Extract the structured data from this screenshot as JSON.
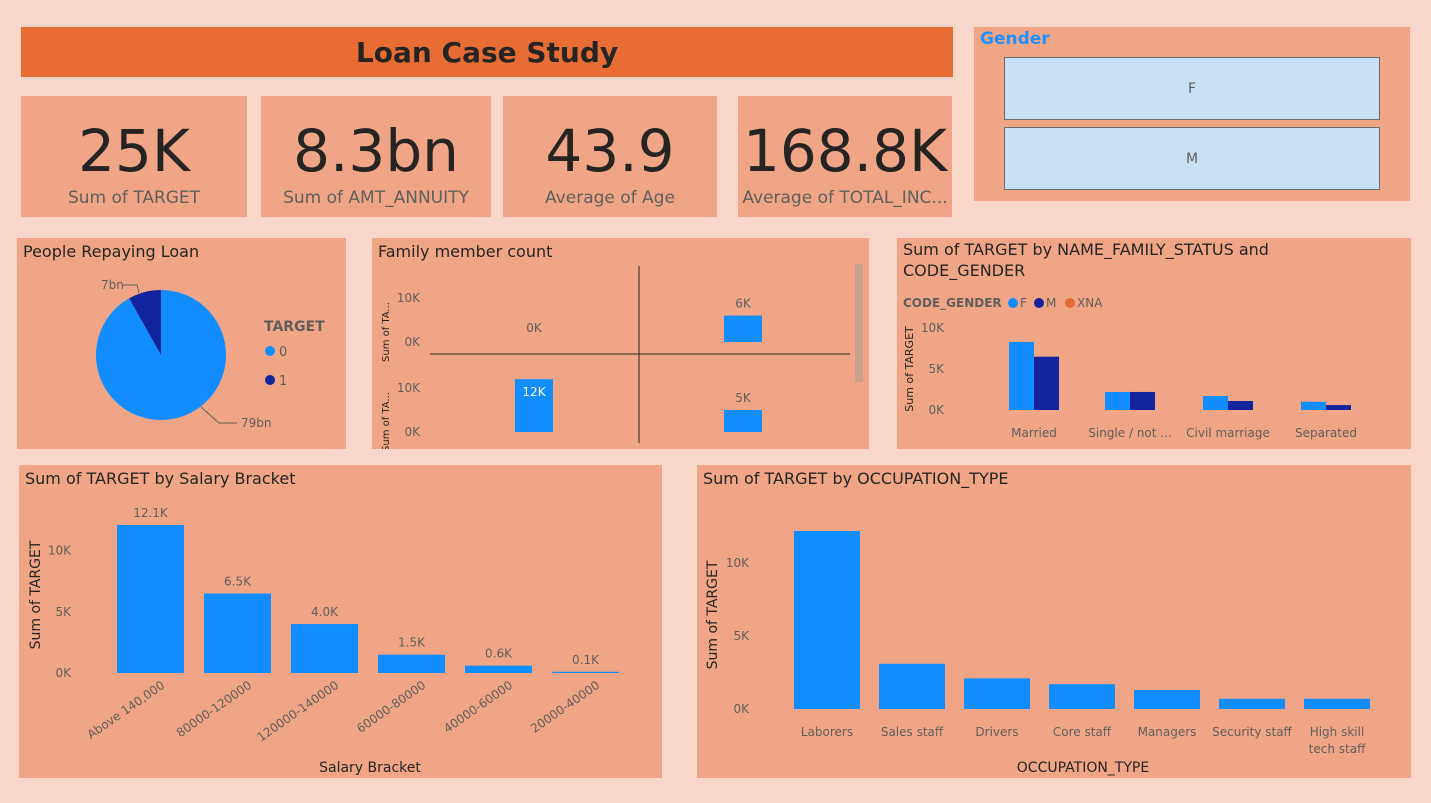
{
  "header": {
    "title": "Loan Case Study"
  },
  "kpis": [
    {
      "value": "25K",
      "label": "Sum of TARGET"
    },
    {
      "value": "8.3bn",
      "label": "Sum of AMT_ANNUITY"
    },
    {
      "value": "43.9",
      "label": "Average of Age"
    },
    {
      "value": "168.8K",
      "label": "Average of TOTAL_INC..."
    }
  ],
  "gender_slicer": {
    "title": "Gender",
    "options": [
      "F",
      "M"
    ]
  },
  "colors": {
    "series_f": "#118dff",
    "series_m": "#12239e",
    "series_xna": "#e66c37",
    "panel": "#f0a686",
    "background": "#f8d7ca",
    "header": "#e86d35"
  },
  "chart_data": [
    {
      "id": "repaying",
      "type": "pie",
      "title": "People Repaying Loan",
      "legend_title": "TARGET",
      "legend_position": "right",
      "categories": [
        "0",
        "1"
      ],
      "values": [
        79,
        7
      ],
      "data_labels": [
        "79bn",
        "7bn"
      ]
    },
    {
      "id": "family",
      "type": "bar",
      "title": "Family member count",
      "ylabel": "Sum of TA...",
      "panels": [
        {
          "value": 0,
          "label": "0K"
        },
        {
          "value": 6,
          "label": "6K"
        },
        {
          "value": 12,
          "label": "12K"
        },
        {
          "value": 5,
          "label": "5K"
        }
      ],
      "ticks": [
        "10K",
        "0K"
      ],
      "ylim": [
        0,
        15
      ]
    },
    {
      "id": "family_status",
      "type": "bar",
      "title": "Sum of TARGET by NAME_FAMILY_STATUS and CODE_GENDER",
      "title_lines": [
        "Sum of TARGET by NAME_FAMILY_STATUS and",
        "CODE_GENDER"
      ],
      "legend_title": "CODE_GENDER",
      "legend_position": "top-left",
      "ylabel": "Sum of TARGET",
      "categories": [
        "Married",
        "Single / not ...",
        "Civil marriage",
        "Separated"
      ],
      "series": [
        {
          "name": "F",
          "values": [
            8.3,
            2.2,
            1.7,
            1.0
          ]
        },
        {
          "name": "M",
          "values": [
            6.5,
            2.2,
            1.1,
            0.6
          ]
        },
        {
          "name": "XNA",
          "values": [
            0,
            0,
            0,
            0
          ]
        }
      ],
      "ticks": [
        "10K",
        "5K",
        "0K"
      ],
      "ylim": [
        0,
        10
      ]
    },
    {
      "id": "salary",
      "type": "bar",
      "title": "Sum of TARGET by Salary Bracket",
      "xlabel": "Salary Bracket",
      "ylabel": "Sum of TARGET",
      "categories": [
        "Above 140,000",
        "80000-120000",
        "120000-140000",
        "60000-80000",
        "40000-60000",
        "20000-40000"
      ],
      "values": [
        12.1,
        6.5,
        4.0,
        1.5,
        0.6,
        0.1
      ],
      "data_labels": [
        "12.1K",
        "6.5K",
        "4.0K",
        "1.5K",
        "0.6K",
        "0.1K"
      ],
      "ticks": [
        "10K",
        "5K",
        "0K"
      ],
      "ylim": [
        0,
        12.1
      ]
    },
    {
      "id": "occupation",
      "type": "bar",
      "title": "Sum of TARGET by OCCUPATION_TYPE",
      "xlabel": "OCCUPATION_TYPE",
      "ylabel": "Sum of TARGET",
      "categories": [
        "Laborers",
        "Sales staff",
        "Drivers",
        "Core staff",
        "Managers",
        "Security staff",
        "High skill tech staff"
      ],
      "category_lines": [
        [
          "Laborers"
        ],
        [
          "Sales staff"
        ],
        [
          "Drivers"
        ],
        [
          "Core staff"
        ],
        [
          "Managers"
        ],
        [
          "Security staff"
        ],
        [
          "High skill",
          "tech staff"
        ]
      ],
      "values": [
        12.2,
        3.1,
        2.1,
        1.7,
        1.3,
        0.7,
        0.7
      ],
      "ticks": [
        "10K",
        "5K",
        "0K"
      ],
      "ylim": [
        0,
        12.2
      ]
    }
  ]
}
